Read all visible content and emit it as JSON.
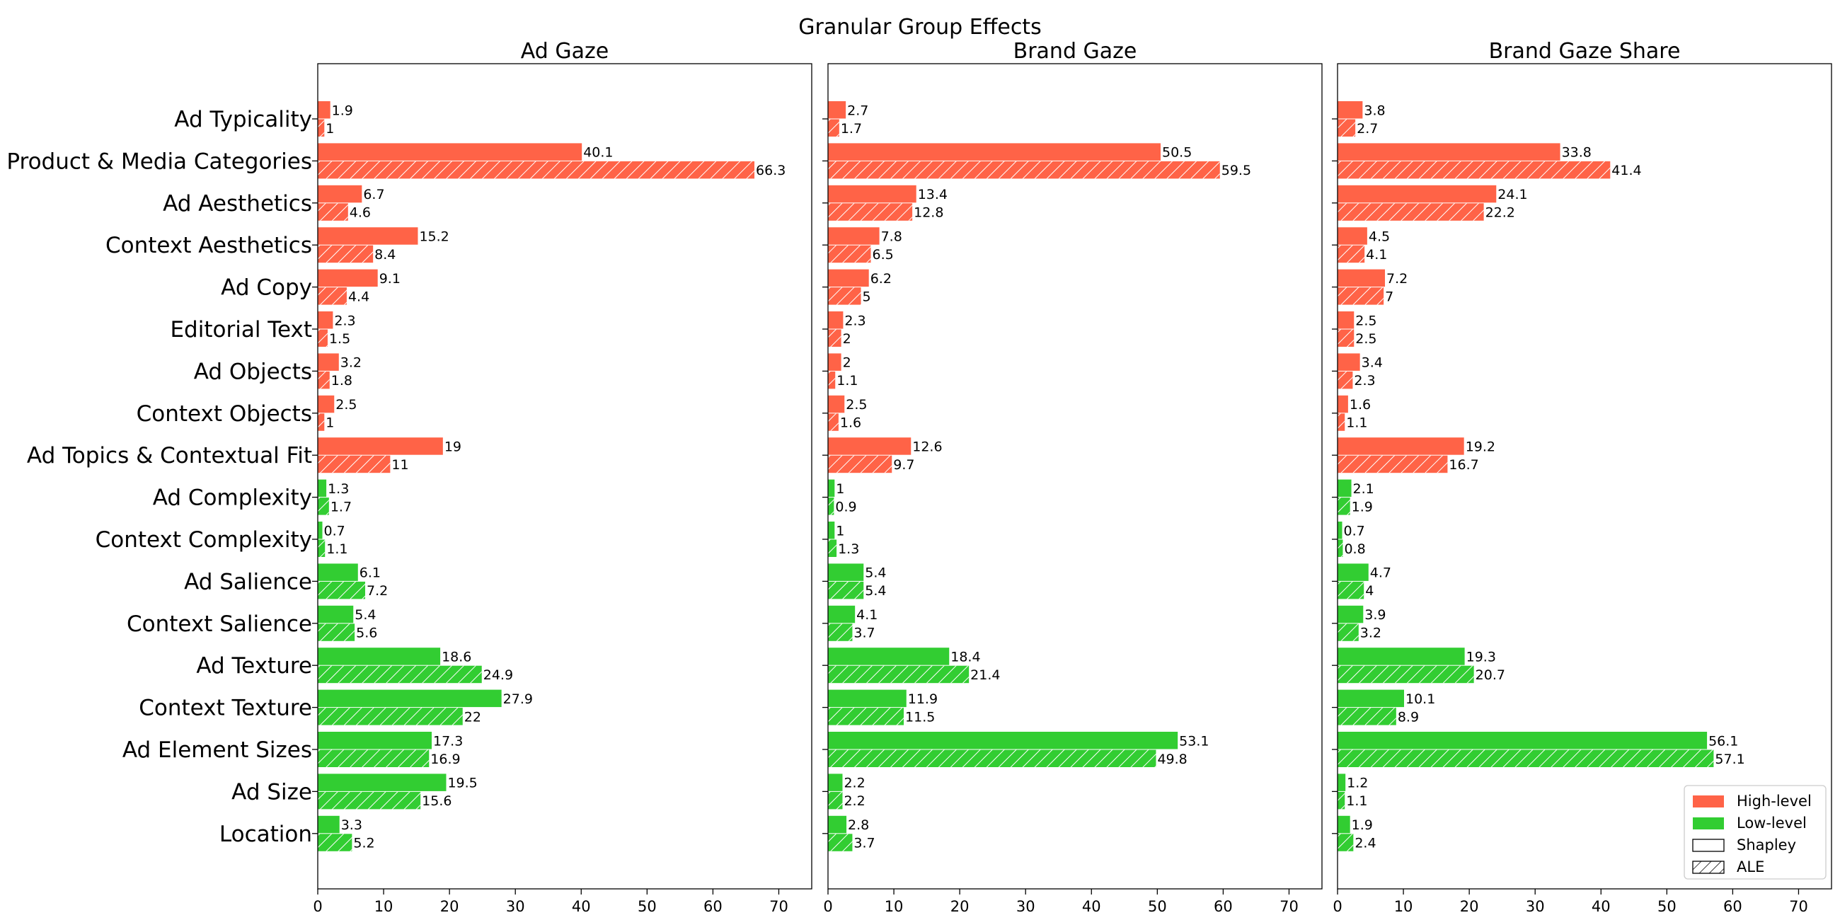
{
  "chart_data": {
    "type": "bar",
    "title": "Granular Group Effects",
    "orientation": "horizontal",
    "xlim": [
      0,
      75
    ],
    "xticks": [
      0,
      10,
      20,
      30,
      40,
      50,
      60,
      70
    ],
    "categories": [
      "Ad Typicality",
      "Product & Media Categories",
      "Ad Aesthetics",
      "Context Aesthetics",
      "Ad Copy",
      "Editorial Text",
      "Ad Objects",
      "Context Objects",
      "Ad Topics & Contextual Fit",
      "Ad Complexity",
      "Context Complexity",
      "Ad Salience",
      "Context Salience",
      "Ad Texture",
      "Context Texture",
      "Ad Element Sizes",
      "Ad Size",
      "Location"
    ],
    "level": [
      "High-level",
      "High-level",
      "High-level",
      "High-level",
      "High-level",
      "High-level",
      "High-level",
      "High-level",
      "High-level",
      "Low-level",
      "Low-level",
      "Low-level",
      "Low-level",
      "Low-level",
      "Low-level",
      "Low-level",
      "Low-level",
      "Low-level"
    ],
    "colors": {
      "High-level": "#ff6347",
      "Low-level": "#32cd32"
    },
    "legend": {
      "placement": "lower right",
      "entries": [
        {
          "label": "High-level",
          "style": "solid-high"
        },
        {
          "label": "Low-level",
          "style": "solid-low"
        },
        {
          "label": "Shapley",
          "style": "outline"
        },
        {
          "label": "ALE",
          "style": "hatch"
        }
      ]
    },
    "panels": [
      {
        "title": "Ad Gaze",
        "series": [
          {
            "name": "Shapley",
            "values": [
              1.9,
              40.1,
              6.7,
              15.2,
              9.1,
              2.3,
              3.2,
              2.5,
              19,
              1.3,
              0.7,
              6.1,
              5.4,
              18.6,
              27.9,
              17.3,
              19.5,
              3.3
            ]
          },
          {
            "name": "ALE",
            "values": [
              1,
              66.3,
              4.6,
              8.4,
              4.4,
              1.5,
              1.8,
              1,
              11,
              1.7,
              1.1,
              7.2,
              5.6,
              24.9,
              22,
              16.9,
              15.6,
              5.2
            ]
          }
        ]
      },
      {
        "title": "Brand Gaze",
        "series": [
          {
            "name": "Shapley",
            "values": [
              2.7,
              50.5,
              13.4,
              7.8,
              6.2,
              2.3,
              2,
              2.5,
              12.6,
              1,
              1,
              5.4,
              4.1,
              18.4,
              11.9,
              53.1,
              2.2,
              2.8
            ]
          },
          {
            "name": "ALE",
            "values": [
              1.7,
              59.5,
              12.8,
              6.5,
              5,
              2,
              1.1,
              1.6,
              9.7,
              0.9,
              1.3,
              5.4,
              3.7,
              21.4,
              11.5,
              49.8,
              2.2,
              3.7
            ]
          }
        ]
      },
      {
        "title": "Brand Gaze Share",
        "series": [
          {
            "name": "Shapley",
            "values": [
              3.8,
              33.8,
              24.1,
              4.5,
              7.2,
              2.5,
              3.4,
              1.6,
              19.2,
              2.1,
              0.7,
              4.7,
              3.9,
              19.3,
              10.1,
              56.1,
              1.2,
              1.9
            ]
          },
          {
            "name": "ALE",
            "values": [
              2.7,
              41.4,
              22.2,
              4.1,
              7,
              2.5,
              2.3,
              1.1,
              16.7,
              1.9,
              0.8,
              4,
              3.2,
              20.7,
              8.9,
              57.1,
              1.1,
              2.4
            ]
          }
        ]
      }
    ]
  }
}
